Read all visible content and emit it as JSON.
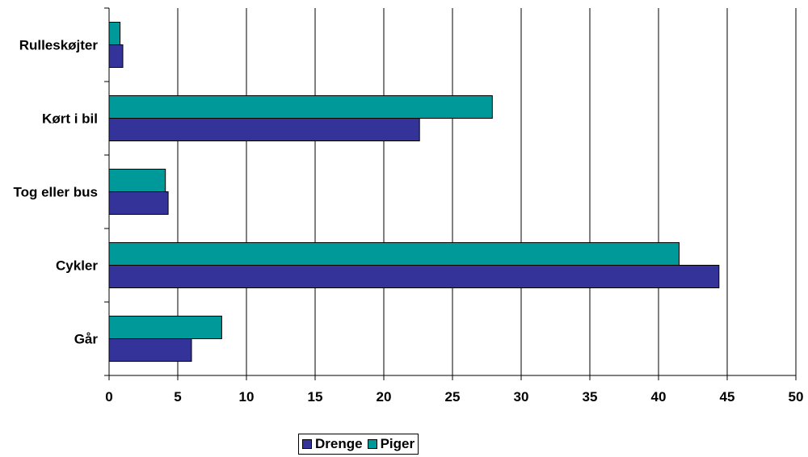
{
  "chart_data": {
    "type": "bar",
    "orientation": "horizontal",
    "categories": [
      "Rulleskøjter",
      "Kørt i bil",
      "Tog eller bus",
      "Cykler",
      "Går"
    ],
    "series": [
      {
        "name": "Drenge",
        "color": "#333399",
        "values": [
          1.0,
          22.6,
          4.3,
          44.4,
          6.0
        ]
      },
      {
        "name": "Piger",
        "color": "#009999",
        "values": [
          0.8,
          27.9,
          4.1,
          41.5,
          8.2
        ]
      }
    ],
    "xlim": [
      0,
      50
    ],
    "xticks": [
      "0",
      "5",
      "10",
      "15",
      "20",
      "25",
      "30",
      "35",
      "40",
      "45",
      "50"
    ],
    "grid": "vertical",
    "legend_position": "bottom-center",
    "title": "",
    "xlabel": "",
    "ylabel": ""
  },
  "legend": {
    "items": [
      {
        "label": "Drenge",
        "color": "#333399"
      },
      {
        "label": "Piger",
        "color": "#009999"
      }
    ]
  }
}
